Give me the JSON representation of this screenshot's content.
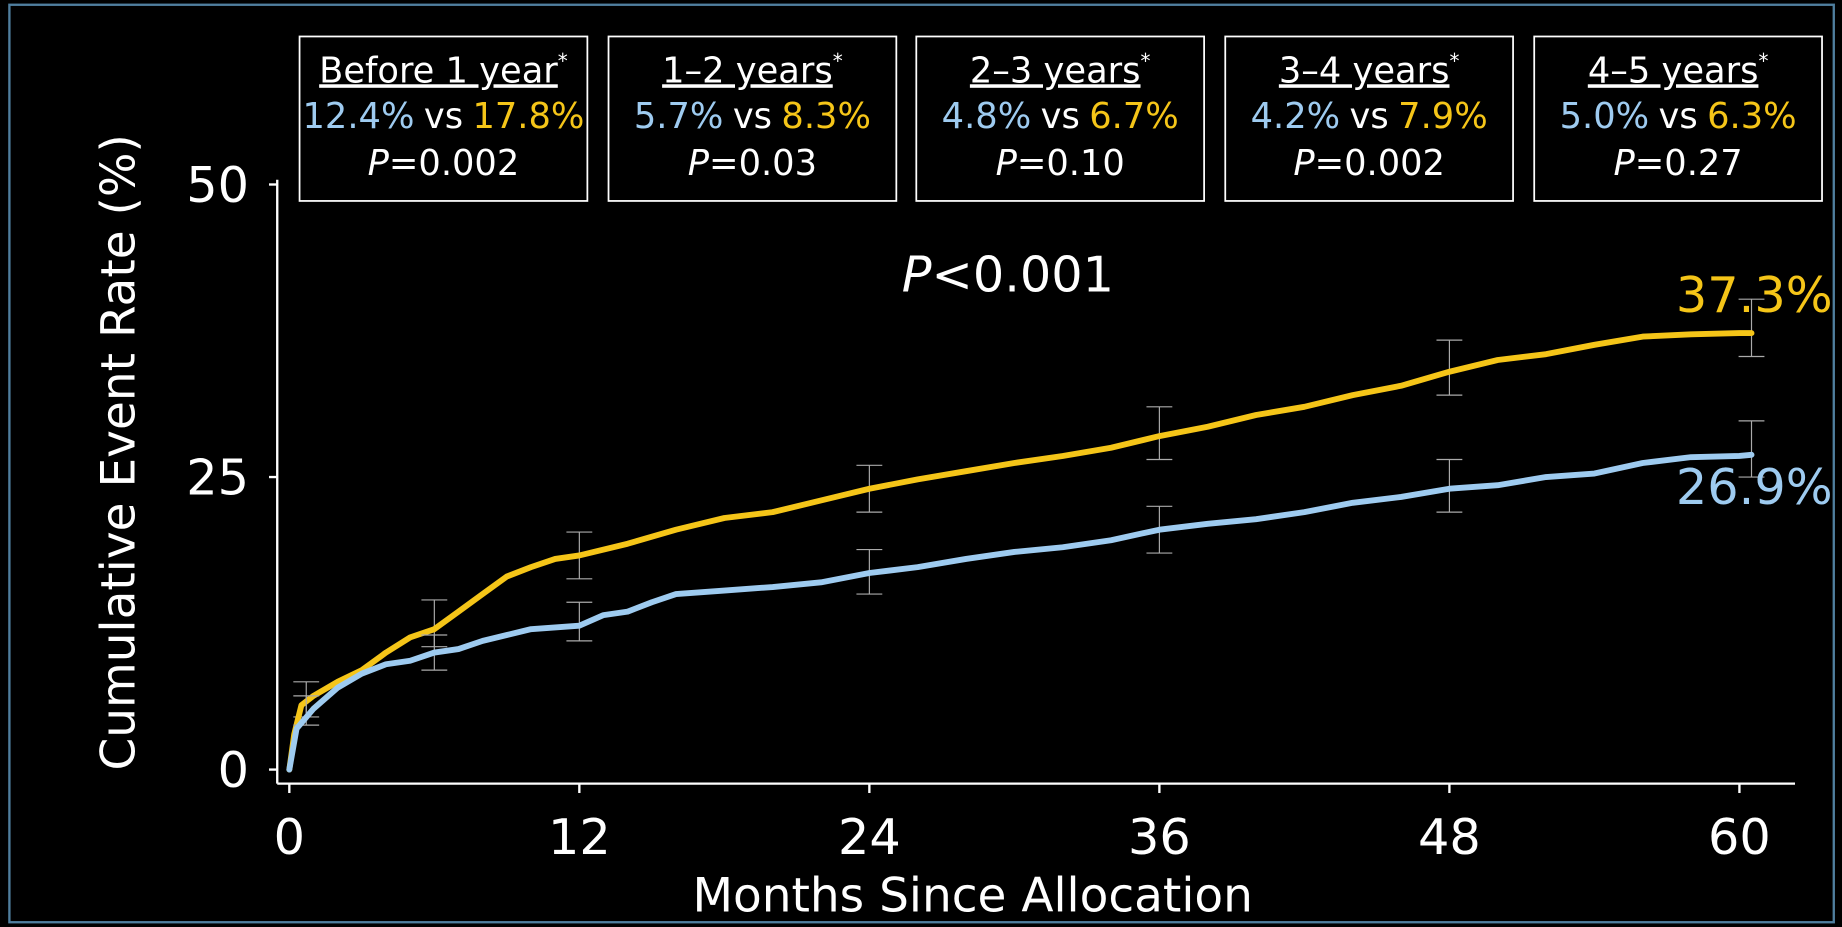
{
  "chart_data": {
    "type": "line",
    "y_label": "Cumulative Event Rate (%)",
    "x_label": "Months Since Allocation",
    "xlim": [
      -0.5,
      62.3
    ],
    "xticks": [
      0,
      12,
      24,
      36,
      48,
      60
    ],
    "ylim": [
      -1.2,
      50
    ],
    "yticks": [
      0,
      25,
      50
    ],
    "p_overall": {
      "label": "P",
      "value": "<0.001"
    },
    "intervals": [
      {
        "period": "Before 1 year",
        "marker": "*",
        "blue": "12.4%",
        "sep": "vs",
        "yellow": "17.8%",
        "p_label": "P",
        "p_value": "=0.002"
      },
      {
        "period": "1–2 years",
        "marker": "*",
        "blue": "5.7%",
        "sep": "vs",
        "yellow": "8.3%",
        "p_label": "P",
        "p_value": "=0.03"
      },
      {
        "period": "2–3 years",
        "marker": "*",
        "blue": "4.8%",
        "sep": "vs",
        "yellow": "6.7%",
        "p_label": "P",
        "p_value": "=0.10"
      },
      {
        "period": "3–4 years",
        "marker": "*",
        "blue": "4.2%",
        "sep": "vs",
        "yellow": "7.9%",
        "p_label": "P",
        "p_value": "=0.002"
      },
      {
        "period": "4–5 years",
        "marker": "*",
        "blue": "5.0%",
        "sep": "vs",
        "yellow": "6.3%",
        "p_label": "P",
        "p_value": "=0.27"
      }
    ],
    "series": [
      {
        "color": "#f5c518",
        "x": [
          0,
          0.2,
          0.5,
          1,
          2,
          3,
          4,
          5,
          6,
          7,
          8,
          9,
          10,
          11,
          12,
          14,
          16,
          18,
          20,
          22,
          24,
          26,
          28,
          30,
          32,
          34,
          36,
          38,
          40,
          42,
          44,
          46,
          48,
          50,
          52,
          54,
          56,
          58,
          60,
          60.5
        ],
        "values": [
          0,
          3,
          5.5,
          6.3,
          7.5,
          8.5,
          10,
          11.3,
          12,
          13.5,
          15,
          16.5,
          17.3,
          18,
          18.3,
          19.3,
          20.5,
          21.5,
          22,
          23,
          24,
          24.8,
          25.5,
          26.2,
          26.8,
          27.5,
          28.5,
          29.3,
          30.3,
          31,
          32,
          32.8,
          34,
          35,
          35.5,
          36.3,
          37,
          37.2,
          37.3,
          37.3
        ],
        "value_labels": [
          null,
          null,
          null,
          null,
          null,
          null,
          null,
          null,
          null,
          null,
          null,
          null,
          null,
          null,
          null,
          null,
          null,
          null,
          null,
          null,
          null,
          null,
          null,
          null,
          null,
          null,
          null,
          null,
          null,
          null,
          null,
          null,
          null,
          null,
          null,
          null,
          null,
          null,
          null,
          "37.3%"
        ],
        "errors": [
          {
            "x": 0.7,
            "low": 4.5,
            "high": 7.5
          },
          {
            "x": 6,
            "low": 10.5,
            "high": 14.5
          },
          {
            "x": 12,
            "low": 16.3,
            "high": 20.3
          },
          {
            "x": 24,
            "low": 22,
            "high": 26
          },
          {
            "x": 36,
            "low": 26.5,
            "high": 31
          },
          {
            "x": 48,
            "low": 32,
            "high": 36.7
          },
          {
            "x": 60.5,
            "low": 35.3,
            "high": 40.2
          }
        ]
      },
      {
        "color": "#9ecbf0",
        "x": [
          0,
          0.3,
          1,
          2,
          3,
          4,
          5,
          6,
          7,
          8,
          9,
          10,
          12,
          13,
          14,
          15,
          16,
          18,
          20,
          22,
          24,
          26,
          28,
          30,
          32,
          34,
          36,
          38,
          40,
          42,
          44,
          46,
          48,
          50,
          52,
          54,
          56,
          58,
          60,
          60.5
        ],
        "values": [
          0,
          3.5,
          5.2,
          7,
          8.2,
          9,
          9.3,
          10,
          10.3,
          11,
          11.5,
          12,
          12.3,
          13.2,
          13.5,
          14.3,
          15,
          15.3,
          15.6,
          16,
          16.8,
          17.3,
          18,
          18.6,
          19,
          19.6,
          20.5,
          21,
          21.4,
          22,
          22.8,
          23.3,
          24,
          24.3,
          25,
          25.3,
          26.2,
          26.7,
          26.8,
          26.9
        ],
        "value_labels": [
          null,
          null,
          null,
          null,
          null,
          null,
          null,
          null,
          null,
          null,
          null,
          null,
          null,
          null,
          null,
          null,
          null,
          null,
          null,
          null,
          null,
          null,
          null,
          null,
          null,
          null,
          null,
          null,
          null,
          null,
          null,
          null,
          null,
          null,
          null,
          null,
          null,
          null,
          null,
          "26.9%"
        ],
        "errors": [
          {
            "x": 0.7,
            "low": 3.8,
            "high": 6.3
          },
          {
            "x": 6,
            "low": 8.5,
            "high": 11.5
          },
          {
            "x": 12,
            "low": 11,
            "high": 14.3
          },
          {
            "x": 24,
            "low": 15,
            "high": 18.8
          },
          {
            "x": 36,
            "low": 18.5,
            "high": 22.5
          },
          {
            "x": 48,
            "low": 22,
            "high": 26.5
          },
          {
            "x": 60.5,
            "low": 25,
            "high": 29.8
          }
        ]
      }
    ]
  }
}
